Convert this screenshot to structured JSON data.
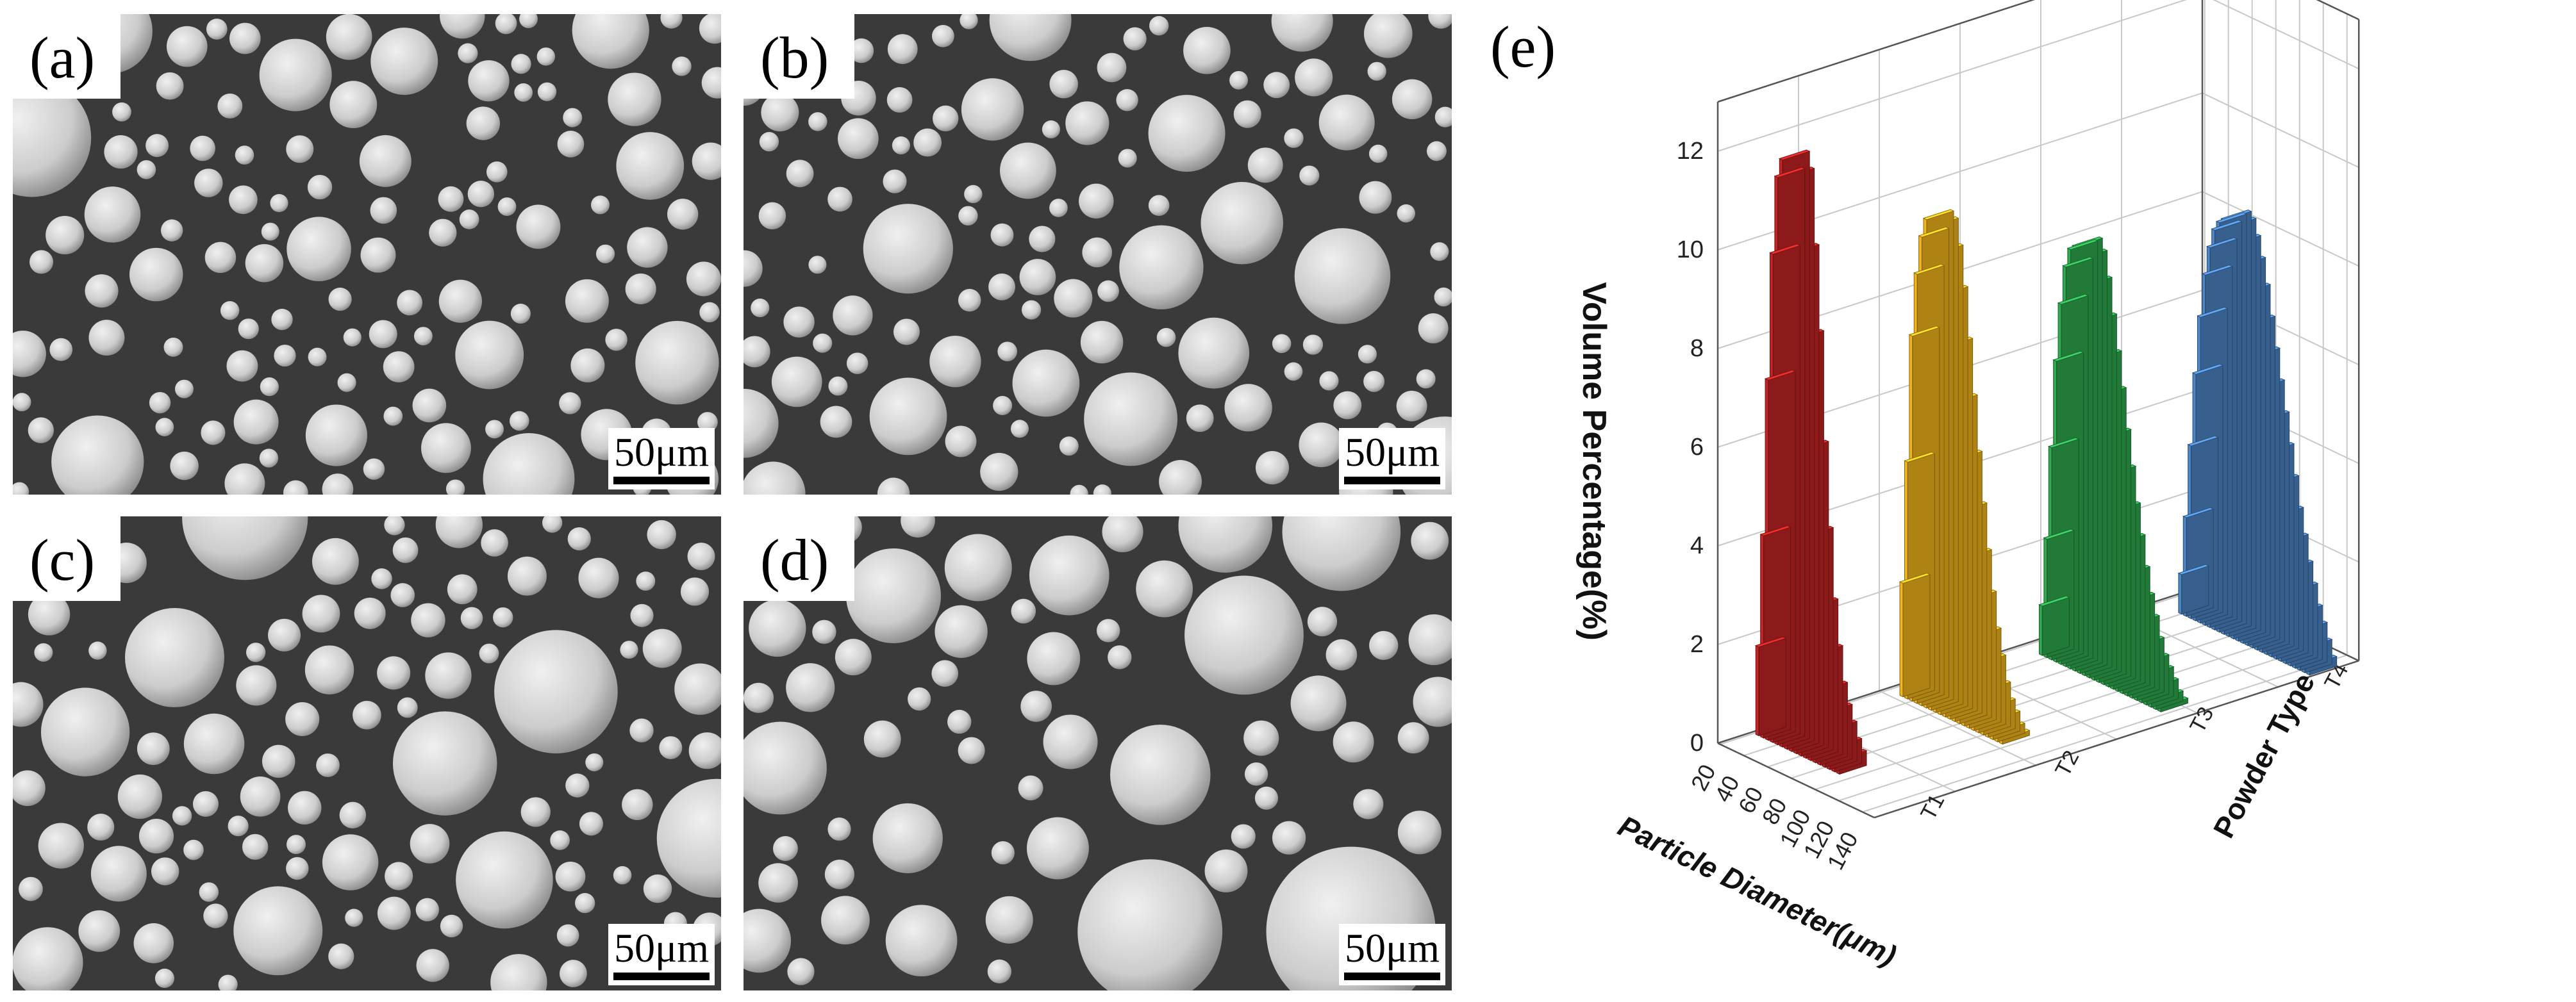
{
  "panels": [
    {
      "label": "(a)",
      "scale_bar": "50μm"
    },
    {
      "label": "(b)",
      "scale_bar": "50μm"
    },
    {
      "label": "(c)",
      "scale_bar": "50μm"
    },
    {
      "label": "(d)",
      "scale_bar": "50μm"
    }
  ],
  "chart_label": "(e)",
  "chart_data": {
    "type": "bar",
    "projection": "3d",
    "title": "",
    "ylabel": "Volume Percentage(%)",
    "xlabel": "Particle Diameter(μm)",
    "zlabel": "Powder Type",
    "y_ticks": [
      "0",
      "2",
      "4",
      "6",
      "8",
      "10",
      "12"
    ],
    "x_ticks": [
      "20",
      "40",
      "60",
      "80",
      "100",
      "120",
      "140"
    ],
    "z_ticks": [
      "T1",
      "T2",
      "T3",
      "T4"
    ],
    "ylim": [
      0,
      13
    ],
    "series": [
      {
        "name": "T1",
        "color": "#c42424",
        "x": [
          23,
          27,
          31,
          35,
          39,
          43,
          47,
          51,
          55,
          59,
          63,
          67,
          71,
          75,
          79,
          83,
          87,
          91
        ],
        "values": [
          1.8,
          4.1,
          7.3,
          9.9,
          11.5,
          11.9,
          11.6,
          10.1,
          8.4,
          6.2,
          4.5,
          3.1,
          2.2,
          1.5,
          1.1,
          0.8,
          0.5,
          0.3
        ]
      },
      {
        "name": "T2",
        "color": "#f2b51a",
        "x": [
          31,
          35,
          39,
          43,
          47,
          51,
          55,
          59,
          63,
          67,
          71,
          75,
          79,
          83,
          87,
          91,
          95,
          99,
          103,
          107,
          111,
          115
        ],
        "values": [
          2.3,
          4.8,
          7.4,
          8.7,
          9.5,
          9.9,
          9.8,
          9.3,
          8.5,
          7.5,
          6.4,
          5.3,
          4.3,
          3.4,
          2.6,
          1.9,
          1.4,
          0.9,
          0.6,
          0.4,
          0.2,
          0.1
        ]
      },
      {
        "name": "T3",
        "color": "#2faa4f",
        "x": [
          35,
          39,
          43,
          47,
          51,
          55,
          59,
          63,
          67,
          71,
          75,
          79,
          83,
          87,
          91,
          95,
          99,
          103,
          107,
          111,
          115,
          119,
          123,
          127,
          131,
          135
        ],
        "values": [
          1.0,
          2.4,
          4.3,
          6.1,
          7.3,
          8.1,
          8.5,
          8.6,
          8.4,
          7.9,
          7.2,
          6.5,
          5.8,
          5.0,
          4.3,
          3.6,
          3.0,
          2.4,
          1.9,
          1.5,
          1.1,
          0.8,
          0.6,
          0.4,
          0.2,
          0.1
        ]
      },
      {
        "name": "T4",
        "color": "#4c86c6",
        "x": [
          39,
          43,
          47,
          51,
          55,
          59,
          63,
          67,
          71,
          75,
          79,
          83,
          87,
          91,
          95,
          99,
          103,
          107,
          111,
          115,
          119,
          123,
          127,
          131,
          135,
          139,
          143,
          147
        ],
        "values": [
          0.8,
          2.0,
          3.5,
          5.0,
          6.2,
          7.1,
          7.7,
          8.1,
          8.3,
          8.4,
          8.3,
          8.0,
          7.6,
          7.1,
          6.5,
          5.9,
          5.3,
          4.7,
          4.1,
          3.5,
          2.9,
          2.4,
          1.9,
          1.5,
          1.1,
          0.8,
          0.5,
          0.2
        ]
      }
    ]
  }
}
